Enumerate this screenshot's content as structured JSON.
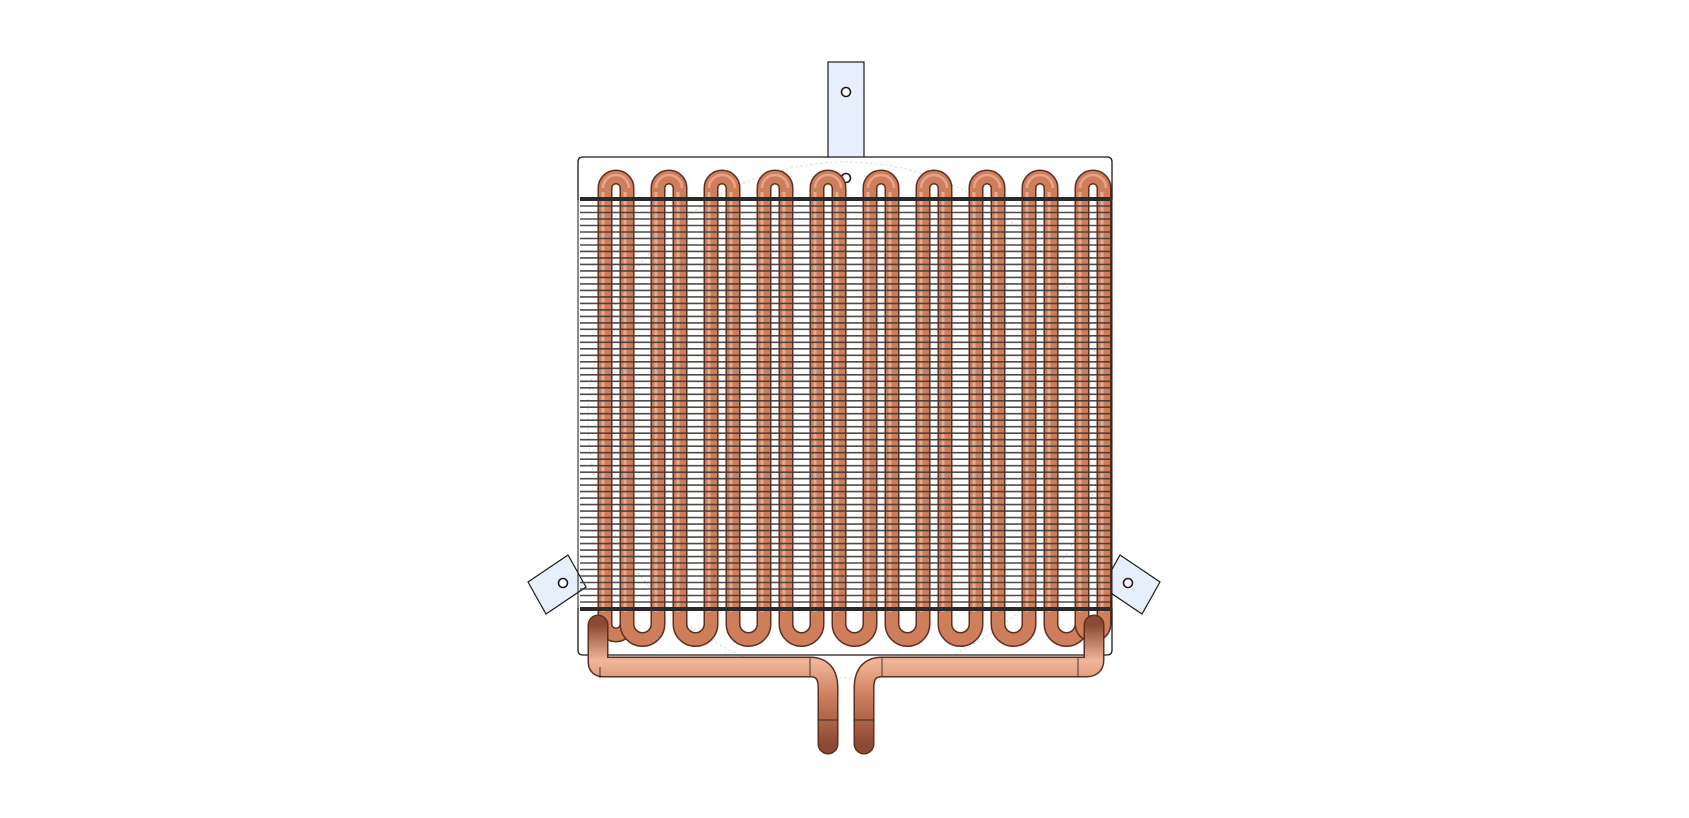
{
  "drawing": {
    "subject": "heat-exchanger-coil",
    "tube_passes": 10,
    "fin_count": 62,
    "mounting_brackets": 3,
    "colors": {
      "background": "#ffffff",
      "bracket_fill": "#e8effc",
      "outline": "#1a1a1a",
      "copper_mid": "#cf7e5c",
      "copper_light": "#f0b79b",
      "copper_dark": "#8c4a33",
      "fin": "#3a3a3a"
    }
  }
}
